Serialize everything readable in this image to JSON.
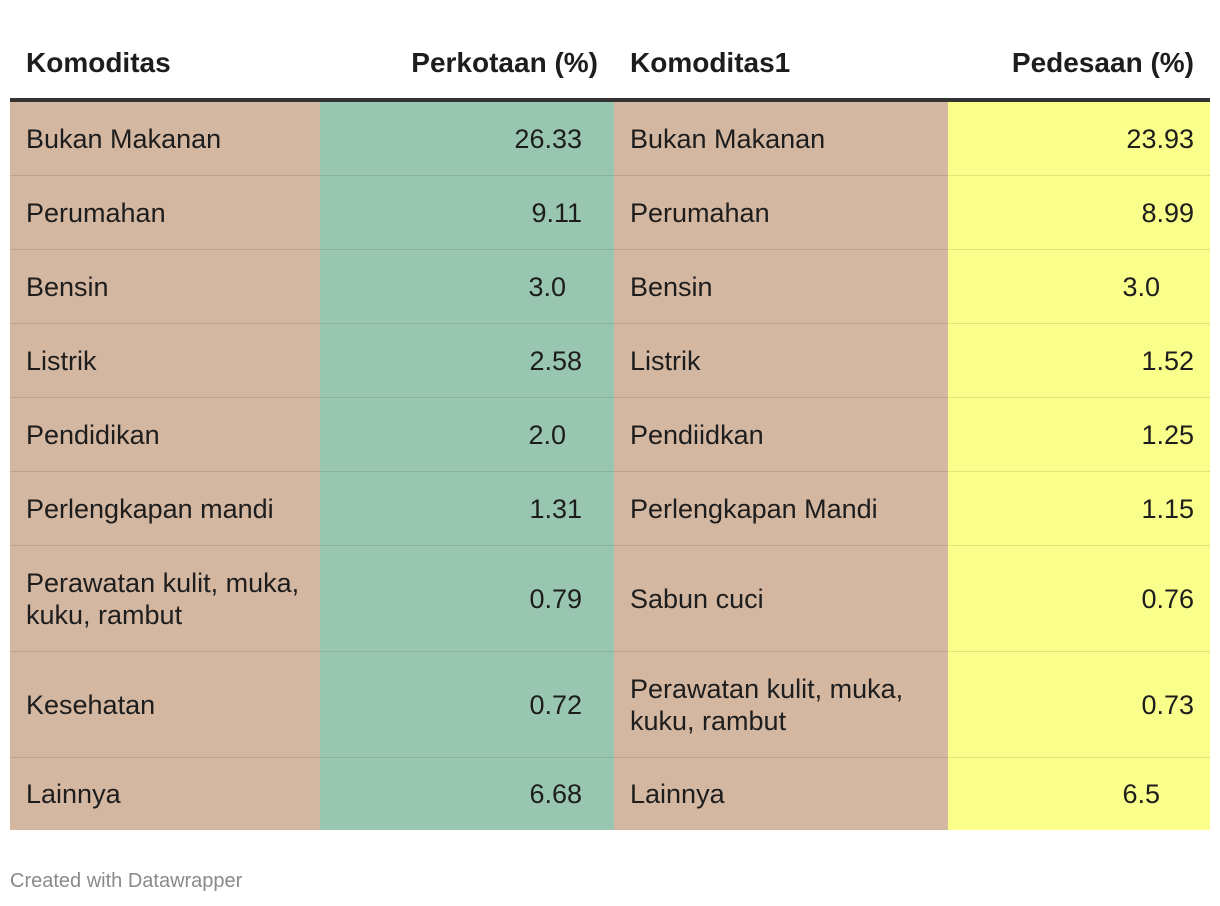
{
  "chart_data": {
    "type": "table",
    "columns": [
      "Komoditas",
      "Perkotaan (%)",
      "Komoditas1",
      "Pedesaan (%)"
    ],
    "rows": [
      {
        "komoditas": "Bukan Makanan",
        "perkotaan": "26.33",
        "komoditas1": "Bukan Makanan",
        "pedesaan": "23.93"
      },
      {
        "komoditas": "Perumahan",
        "perkotaan": "9.11",
        "komoditas1": "Perumahan",
        "pedesaan": "8.99"
      },
      {
        "komoditas": "Bensin",
        "perkotaan": "3.0",
        "komoditas1": "Bensin",
        "pedesaan": "3.0"
      },
      {
        "komoditas": "Listrik",
        "perkotaan": "2.58",
        "komoditas1": "Listrik",
        "pedesaan": "1.52"
      },
      {
        "komoditas": "Pendidikan",
        "perkotaan": "2.0",
        "komoditas1": "Pendiidkan",
        "pedesaan": "1.25"
      },
      {
        "komoditas": "Perlengkapan mandi",
        "perkotaan": "1.31",
        "komoditas1": "Perlengkapan Mandi",
        "pedesaan": "1.15"
      },
      {
        "komoditas": "Perawatan kulit, muka, kuku, rambut",
        "perkotaan": "0.79",
        "komoditas1": "Sabun cuci",
        "pedesaan": "0.76"
      },
      {
        "komoditas": "Kesehatan",
        "perkotaan": "0.72",
        "komoditas1": "Perawatan kulit, muka, kuku, rambut",
        "pedesaan": "0.73"
      },
      {
        "komoditas": "Lainnya",
        "perkotaan": "6.68",
        "komoditas1": "Lainnya",
        "pedesaan": "6.5"
      }
    ],
    "colors": {
      "name_cells": "#d4b7a1",
      "perkotaan_cells": "#98c6b0",
      "pedesaan_cells": "#fafe8a",
      "header_rule": "#333333"
    }
  },
  "footer": {
    "credit": "Created with Datawrapper"
  }
}
